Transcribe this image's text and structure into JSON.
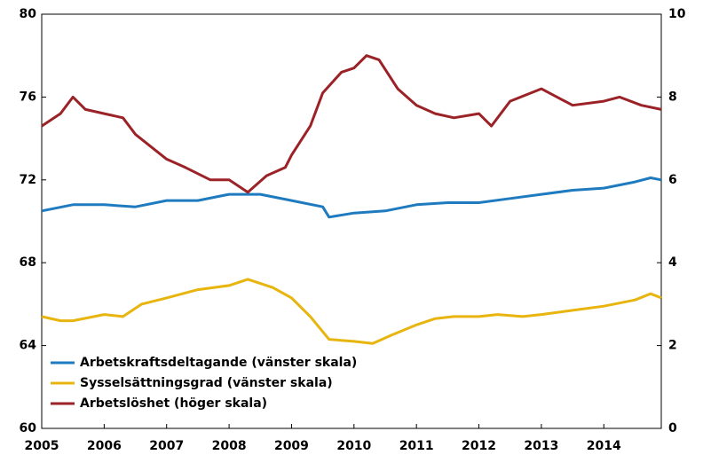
{
  "chart_data": {
    "type": "line",
    "xlim": [
      2005,
      2014.92
    ],
    "xticks": [
      2005,
      2006,
      2007,
      2008,
      2009,
      2010,
      2011,
      2012,
      2013,
      2014
    ],
    "ylim": [
      60,
      80
    ],
    "yticks": [
      60,
      64,
      68,
      72,
      76,
      80
    ],
    "y2lim": [
      0,
      10
    ],
    "y2ticks": [
      0,
      2,
      4,
      6,
      8,
      10
    ],
    "legend": "bottom-left",
    "series": [
      {
        "name": "Arbetskraftsdeltagande (vänster skala)",
        "color": "#1f7bbf",
        "x": [
          2005,
          2005.5,
          2006,
          2006.5,
          2007,
          2007.5,
          2008,
          2008.5,
          2009,
          2009.5,
          2009.6,
          2010,
          2010.5,
          2011,
          2011.5,
          2012,
          2012.5,
          2013,
          2013.5,
          2014,
          2014.5,
          2014.75,
          2014.92
        ],
        "values": [
          70.5,
          70.8,
          70.8,
          70.7,
          71.0,
          71.0,
          71.3,
          71.3,
          71.0,
          70.7,
          70.2,
          70.4,
          70.5,
          70.8,
          70.9,
          70.9,
          71.1,
          71.3,
          71.5,
          71.6,
          71.9,
          72.1,
          72.0
        ]
      },
      {
        "name": "Sysselsättningsgrad (vänster skala)",
        "color": "#e8b40e",
        "x": [
          2005,
          2005.3,
          2005.5,
          2006,
          2006.3,
          2006.6,
          2007,
          2007.5,
          2008,
          2008.3,
          2008.7,
          2009,
          2009.3,
          2009.6,
          2010,
          2010.3,
          2010.6,
          2011,
          2011.3,
          2011.6,
          2012,
          2012.3,
          2012.7,
          2013,
          2013.5,
          2014,
          2014.5,
          2014.75,
          2014.92
        ],
        "values": [
          65.4,
          65.2,
          65.2,
          65.5,
          65.4,
          66.0,
          66.3,
          66.7,
          66.9,
          67.2,
          66.8,
          66.3,
          65.4,
          64.3,
          64.2,
          64.1,
          64.5,
          65.0,
          65.3,
          65.4,
          65.4,
          65.5,
          65.4,
          65.5,
          65.7,
          65.9,
          66.2,
          66.5,
          66.3
        ]
      },
      {
        "name": "Arbetslöshet (höger skala)",
        "color": "#9b2226",
        "axis": "y2",
        "x": [
          2005,
          2005.3,
          2005.5,
          2005.7,
          2006,
          2006.3,
          2006.5,
          2007,
          2007.3,
          2007.7,
          2008,
          2008.3,
          2008.6,
          2008.9,
          2009,
          2009.3,
          2009.5,
          2009.8,
          2010,
          2010.2,
          2010.4,
          2010.7,
          2011,
          2011.3,
          2011.6,
          2012,
          2012.2,
          2012.5,
          2013,
          2013.5,
          2014,
          2014.25,
          2014.6,
          2014.92
        ],
        "values": [
          7.3,
          7.6,
          8.0,
          7.7,
          7.6,
          7.5,
          7.1,
          6.5,
          6.3,
          6.0,
          6.0,
          5.7,
          6.1,
          6.3,
          6.6,
          7.3,
          8.1,
          8.6,
          8.7,
          9.0,
          8.9,
          8.2,
          7.8,
          7.6,
          7.5,
          7.6,
          7.3,
          7.9,
          8.2,
          7.8,
          7.9,
          8.0,
          7.8,
          7.7
        ]
      }
    ]
  }
}
